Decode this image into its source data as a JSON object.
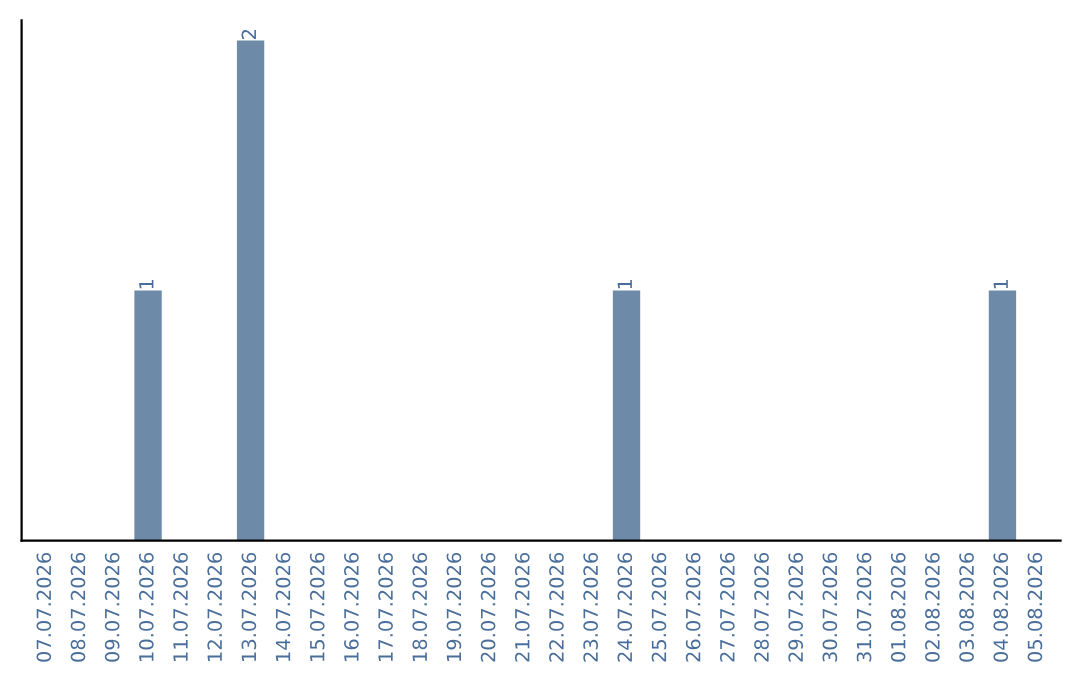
{
  "chart_data": {
    "type": "bar",
    "categories": [
      "07.07.2026",
      "08.07.2026",
      "09.07.2026",
      "10.07.2026",
      "11.07.2026",
      "12.07.2026",
      "13.07.2026",
      "14.07.2026",
      "15.07.2026",
      "16.07.2026",
      "17.07.2026",
      "18.07.2026",
      "19.07.2026",
      "20.07.2026",
      "21.07.2026",
      "22.07.2026",
      "23.07.2026",
      "24.07.2026",
      "25.07.2026",
      "26.07.2026",
      "27.07.2026",
      "28.07.2026",
      "29.07.2026",
      "30.07.2026",
      "31.07.2026",
      "01.08.2026",
      "02.08.2026",
      "03.08.2026",
      "04.08.2026",
      "05.08.2026"
    ],
    "values": [
      0,
      0,
      0,
      1,
      0,
      0,
      2,
      0,
      0,
      0,
      0,
      0,
      0,
      0,
      0,
      0,
      0,
      1,
      0,
      0,
      0,
      0,
      0,
      0,
      0,
      0,
      0,
      0,
      1,
      0
    ],
    "value_labels": [
      null,
      null,
      null,
      "1",
      null,
      null,
      "2",
      null,
      null,
      null,
      null,
      null,
      null,
      null,
      null,
      null,
      null,
      "1",
      null,
      null,
      null,
      null,
      null,
      null,
      null,
      null,
      null,
      null,
      "1",
      null
    ],
    "color": "#6d8aa8",
    "tick_labels": "x",
    "grid": false,
    "legend": false
  }
}
